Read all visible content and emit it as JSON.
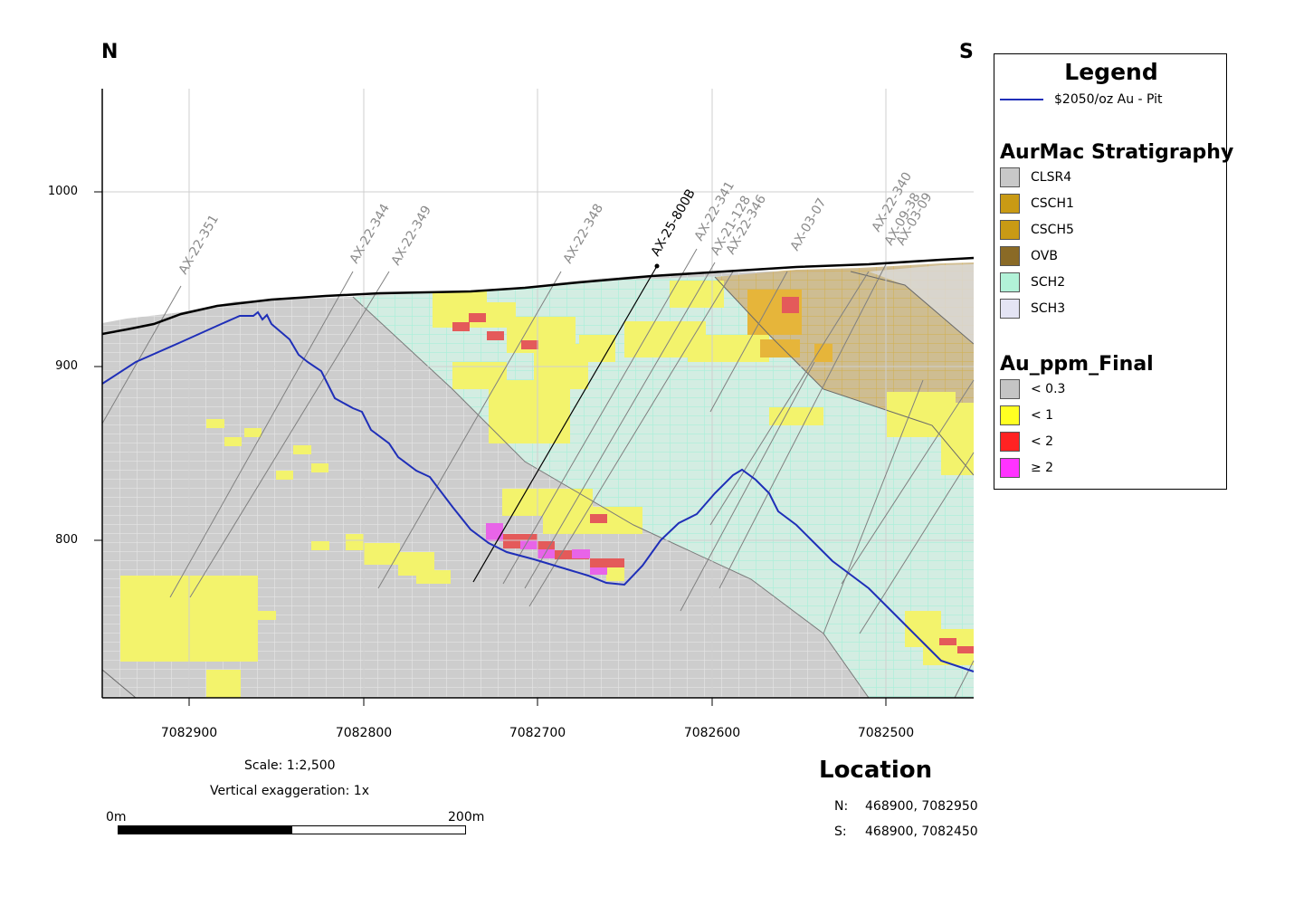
{
  "directions": {
    "left": "N",
    "right": "S"
  },
  "y_ticks": [
    "1000",
    "900",
    "800"
  ],
  "x_ticks": [
    "7082900",
    "7082800",
    "7082700",
    "7082600",
    "7082500"
  ],
  "drillholes": [
    "AX-22-351",
    "AX-22-344",
    "AX-22-349",
    "AX-22-348",
    "AX-25-800B",
    "AX-22-341",
    "AX-21-128",
    "AX-22-346",
    "AX-03-07",
    "AX-22-340",
    "AX-09-38",
    "AX-03-09"
  ],
  "legend": {
    "title": "Legend",
    "pit_label": "$2050/oz Au - Pit",
    "pit_color": "#1f2fb8",
    "strat_title": "AurMac Stratigraphy",
    "strat_items": [
      {
        "label": "CLSR4",
        "color": "#c8c8c8"
      },
      {
        "label": "CSCH1",
        "color": "#c99a14"
      },
      {
        "label": "CSCH5",
        "color": "#c99a14"
      },
      {
        "label": "OVB",
        "color": "#8a6a26"
      },
      {
        "label": "SCH2",
        "color": "#b2f2d8"
      },
      {
        "label": "SCH3",
        "color": "#e4e4f4"
      }
    ],
    "au_title": "Au_ppm_Final",
    "au_items": [
      {
        "label": "< 0.3",
        "color": "#c4c4c4"
      },
      {
        "label": "< 1",
        "color": "#ffff22"
      },
      {
        "label": "< 2",
        "color": "#ff2222"
      },
      {
        "label": "≥ 2",
        "color": "#ff33ff"
      }
    ]
  },
  "scale": {
    "text": "Scale: 1:2,500",
    "exaggeration": "Vertical exaggeration: 1x",
    "start": "0m",
    "end": "200m"
  },
  "location": {
    "title": "Location",
    "n_label": "N:",
    "n_value": "468900, 7082950",
    "s_label": "S:",
    "s_value": "468900, 7082450"
  }
}
